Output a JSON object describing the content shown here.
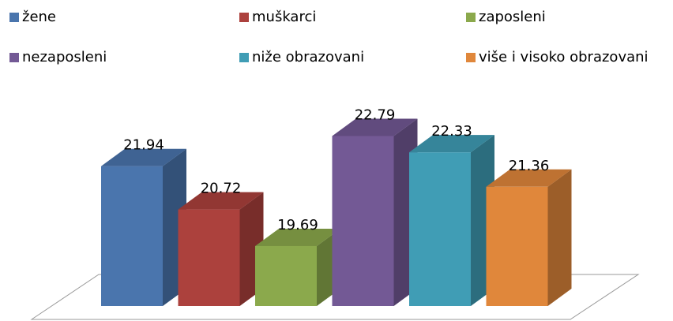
{
  "chart_data": {
    "type": "bar3d",
    "categories": [
      null
    ],
    "series": [
      {
        "name": "žene",
        "color": "#4a75ad",
        "values": [
          21.94
        ]
      },
      {
        "name": "muškarci",
        "color": "#ac413d",
        "values": [
          20.72
        ]
      },
      {
        "name": "zaposleni",
        "color": "#8ba94c",
        "values": [
          19.69
        ]
      },
      {
        "name": "nezaposleni",
        "color": "#735995",
        "values": [
          22.79
        ]
      },
      {
        "name": "niže obrazovani",
        "color": "#409db5",
        "values": [
          22.33
        ]
      },
      {
        "name": "više i visoko obrazovani",
        "color": "#e0873b",
        "values": [
          21.36
        ]
      }
    ],
    "ylim": [
      18,
      23
    ],
    "legend": "top"
  }
}
